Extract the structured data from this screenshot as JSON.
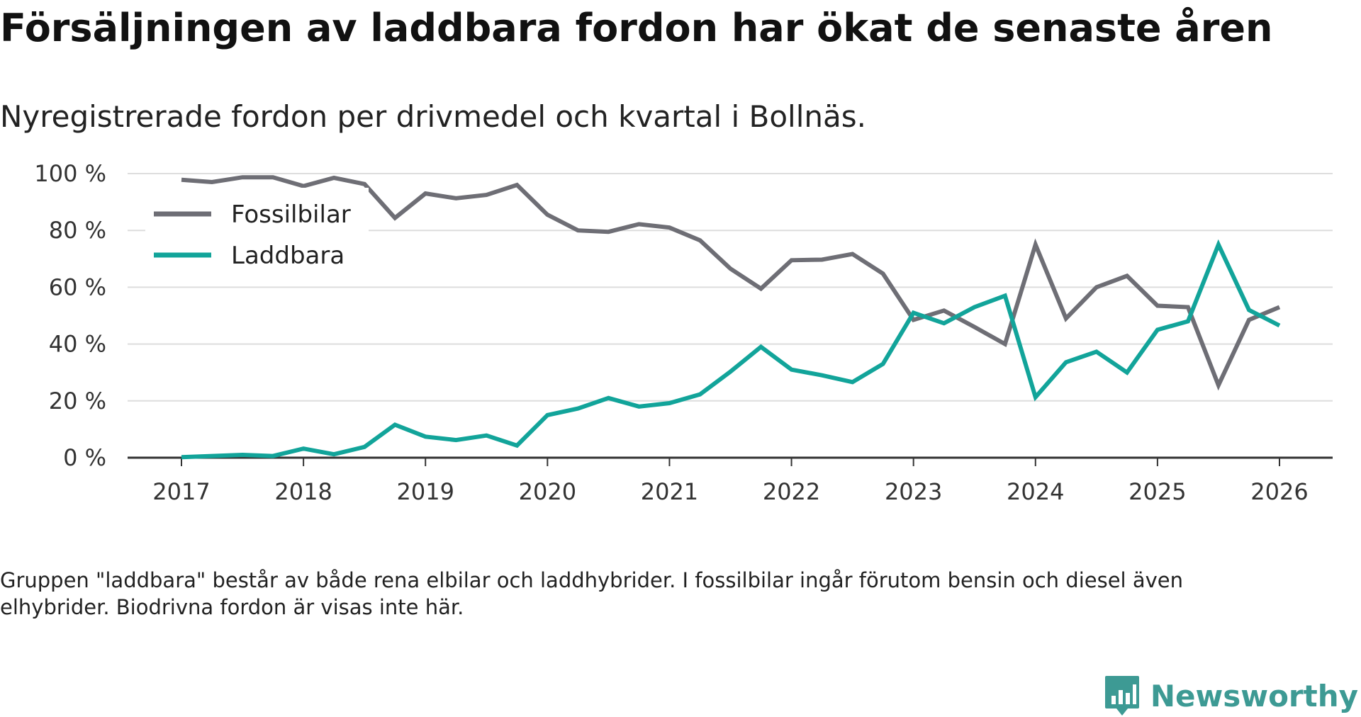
{
  "title": "Försäljningen av laddbara fordon har ökat de senaste åren",
  "subtitle": "Nyregistrerade fordon per drivmedel och kvartal i Bollnäs.",
  "footnote": "Gruppen \"laddbara\" består av både rena elbilar och laddhybrider. I fossilbilar ingår förutom bensin och diesel även elhybrider. Biodrivna fordon är visas inte här.",
  "brand": {
    "name": "Newsworthy",
    "icon": "newsworthy-logo-icon",
    "color": "#3d9a94"
  },
  "chart_data": {
    "type": "line",
    "title": "Försäljningen av laddbara fordon har ökat de senaste åren",
    "xlabel": "",
    "ylabel": "",
    "x_start": 2017,
    "x_step": 0.25,
    "xlim": [
      2017,
      2026
    ],
    "ylim": [
      0,
      100
    ],
    "y_ticks": [
      0,
      20,
      40,
      60,
      80,
      100
    ],
    "y_tick_labels": [
      "0 %",
      "20 %",
      "40 %",
      "60 %",
      "80 %",
      "100 %"
    ],
    "x_ticks": [
      2017,
      2018,
      2019,
      2020,
      2021,
      2022,
      2023,
      2024,
      2025,
      2026
    ],
    "x_tick_labels": [
      "2017",
      "2018",
      "2019",
      "2020",
      "2021",
      "2022",
      "2023",
      "2024",
      "2025",
      "2026"
    ],
    "legend_position": "top-left",
    "grid": true,
    "series": [
      {
        "name": "Fossilbilar",
        "color": "#6e6e75",
        "values": [
          97.8,
          97.0,
          98.7,
          98.7,
          95.6,
          98.5,
          96.3,
          84.4,
          93.0,
          91.3,
          92.5,
          96.0,
          85.5,
          80.0,
          79.5,
          82.2,
          81.0,
          76.5,
          66.5,
          59.5,
          69.5,
          69.7,
          71.7,
          64.8,
          48.5,
          51.8,
          46.0,
          40.0,
          75.0,
          49.0,
          60.0,
          64.0,
          53.5,
          53.0,
          25.5,
          48.5,
          53.0
        ]
      },
      {
        "name": "Laddbara",
        "color": "#12a49a",
        "values": [
          0.2,
          0.6,
          1.0,
          0.6,
          3.2,
          1.2,
          3.8,
          11.6,
          7.4,
          6.2,
          7.8,
          4.3,
          15.0,
          17.3,
          21.0,
          18.0,
          19.2,
          22.3,
          30.3,
          39.0,
          31.0,
          29.0,
          26.6,
          33.0,
          51.0,
          47.3,
          53.0,
          57.0,
          21.3,
          33.6,
          37.3,
          30.0,
          45.0,
          48.0,
          75.0,
          52.0,
          46.5
        ]
      }
    ]
  }
}
